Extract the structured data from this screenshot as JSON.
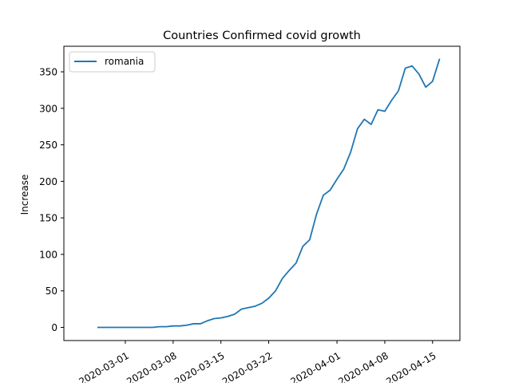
{
  "chart_data": {
    "type": "line",
    "title": "Countries Confirmed covid growth",
    "xlabel": "",
    "ylabel": "Increase",
    "grid": false,
    "legend_position": "top-left",
    "x_tick_labels": [
      "2020-03-01",
      "2020-03-08",
      "2020-03-15",
      "2020-03-22",
      "2020-04-01",
      "2020-04-08",
      "2020-04-15"
    ],
    "y_ticks": [
      0,
      50,
      100,
      150,
      200,
      250,
      300,
      350
    ],
    "xlim": [
      "2020-02-21",
      "2020-04-19"
    ],
    "ylim": [
      -18,
      385
    ],
    "series": [
      {
        "name": "romania",
        "color": "#1f77b4",
        "x": [
          "2020-02-26",
          "2020-02-27",
          "2020-02-28",
          "2020-02-29",
          "2020-03-01",
          "2020-03-02",
          "2020-03-03",
          "2020-03-04",
          "2020-03-05",
          "2020-03-06",
          "2020-03-07",
          "2020-03-08",
          "2020-03-09",
          "2020-03-10",
          "2020-03-11",
          "2020-03-12",
          "2020-03-13",
          "2020-03-14",
          "2020-03-15",
          "2020-03-16",
          "2020-03-17",
          "2020-03-18",
          "2020-03-19",
          "2020-03-20",
          "2020-03-21",
          "2020-03-22",
          "2020-03-23",
          "2020-03-24",
          "2020-03-25",
          "2020-03-26",
          "2020-03-27",
          "2020-03-28",
          "2020-03-29",
          "2020-03-30",
          "2020-03-31",
          "2020-04-01",
          "2020-04-02",
          "2020-04-03",
          "2020-04-04",
          "2020-04-05",
          "2020-04-06",
          "2020-04-07",
          "2020-04-08",
          "2020-04-09",
          "2020-04-10",
          "2020-04-11",
          "2020-04-12",
          "2020-04-13",
          "2020-04-14",
          "2020-04-15",
          "2020-04-16"
        ],
        "values": [
          0,
          0,
          0,
          0,
          0,
          0,
          0,
          0,
          0,
          1,
          1,
          2,
          2,
          3,
          5,
          5,
          9,
          12,
          13,
          15,
          18,
          25,
          27,
          29,
          33,
          40,
          50,
          67,
          78,
          88,
          111,
          120,
          155,
          181,
          188,
          203,
          217,
          240,
          272,
          285,
          278,
          298,
          296,
          311,
          324,
          355,
          358,
          347,
          329,
          337,
          367
        ]
      }
    ]
  }
}
